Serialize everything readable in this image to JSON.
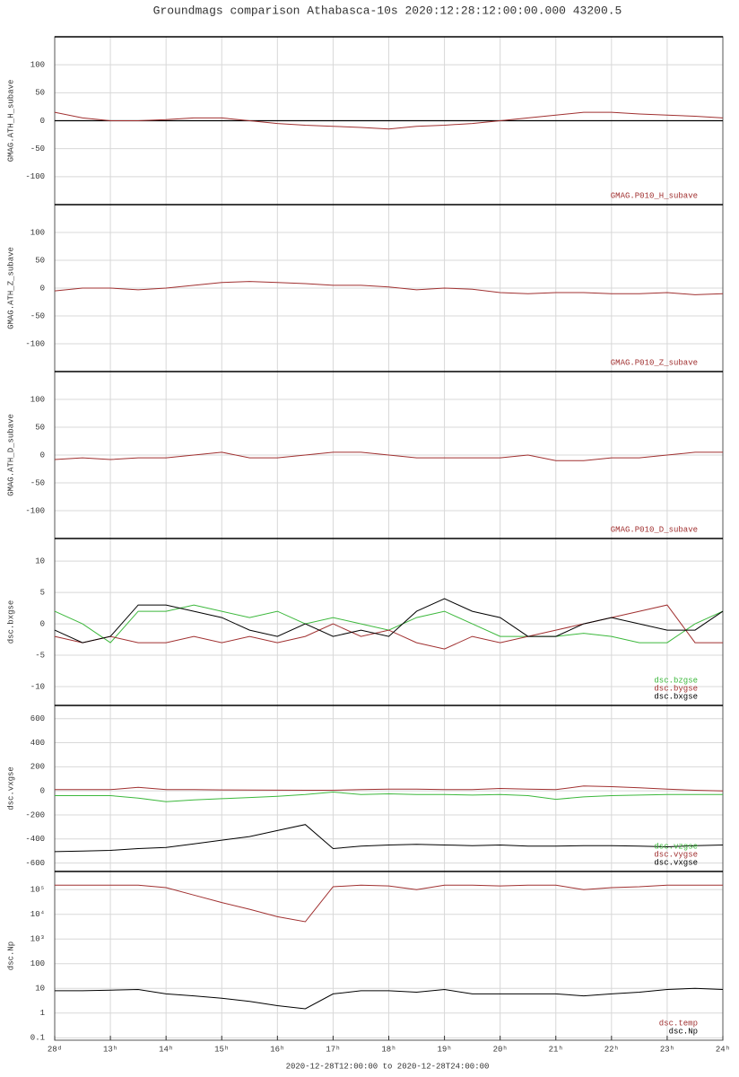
{
  "title": "Groundmags comparison Athabasca-10s 2020:12:28:12:00:00.000 43200.5",
  "footer": "2020-12-28T12:00:00 to 2020-12-28T24:00:00",
  "chart_data": [
    {
      "type": "line",
      "ylabel": "GMAG.ATH_H_subave",
      "ylim": [
        -150,
        150
      ],
      "yticks": [
        -100,
        -50,
        0,
        50,
        100
      ],
      "grid": true,
      "zero_line": true,
      "legend": "lower right",
      "x": [
        12,
        12.5,
        13,
        13.5,
        14,
        14.5,
        15,
        15.5,
        16,
        16.5,
        17,
        17.5,
        18,
        18.5,
        19,
        19.5,
        20,
        20.5,
        21,
        21.5,
        22,
        22.5,
        23,
        23.5,
        24
      ],
      "series": [
        {
          "name": "GMAG.P010_H_subave",
          "color": "#a03030",
          "values": [
            15,
            5,
            0,
            0,
            2,
            5,
            5,
            0,
            -5,
            -8,
            -10,
            -12,
            -15,
            -10,
            -8,
            -5,
            0,
            5,
            10,
            15,
            15,
            12,
            10,
            8,
            5
          ]
        }
      ]
    },
    {
      "type": "line",
      "ylabel": "GMAG.ATH_Z_subave",
      "ylim": [
        -150,
        150
      ],
      "yticks": [
        -100,
        -50,
        0,
        50,
        100
      ],
      "grid": true,
      "legend": "lower right",
      "x": [
        12,
        12.5,
        13,
        13.5,
        14,
        14.5,
        15,
        15.5,
        16,
        16.5,
        17,
        17.5,
        18,
        18.5,
        19,
        19.5,
        20,
        20.5,
        21,
        21.5,
        22,
        22.5,
        23,
        23.5,
        24
      ],
      "series": [
        {
          "name": "GMAG.P010_Z_subave",
          "color": "#a03030",
          "values": [
            -5,
            0,
            0,
            -3,
            0,
            5,
            10,
            12,
            10,
            8,
            5,
            5,
            2,
            -3,
            0,
            -2,
            -8,
            -10,
            -8,
            -8,
            -10,
            -10,
            -8,
            -12,
            -10
          ]
        }
      ]
    },
    {
      "type": "line",
      "ylabel": "GMAG.ATH_D_subave",
      "ylim": [
        -150,
        150
      ],
      "yticks": [
        -100,
        -50,
        0,
        50,
        100
      ],
      "grid": true,
      "legend": "lower right",
      "x": [
        12,
        12.5,
        13,
        13.5,
        14,
        14.5,
        15,
        15.5,
        16,
        16.5,
        17,
        17.5,
        18,
        18.5,
        19,
        19.5,
        20,
        20.5,
        21,
        21.5,
        22,
        22.5,
        23,
        23.5,
        24
      ],
      "series": [
        {
          "name": "GMAG.P010_D_subave",
          "color": "#a03030",
          "values": [
            -8,
            -5,
            -8,
            -5,
            -5,
            0,
            5,
            -5,
            -5,
            0,
            5,
            5,
            0,
            -5,
            -5,
            -5,
            -5,
            0,
            -10,
            -10,
            -5,
            -5,
            0,
            5,
            5
          ]
        }
      ]
    },
    {
      "type": "line",
      "ylabel": "dsc.bxgse",
      "ylim": [
        -13,
        13.6
      ],
      "yticks": [
        -10,
        -5,
        0,
        5,
        10
      ],
      "grid": true,
      "legend": "lower right",
      "x": [
        12,
        12.5,
        13,
        13.5,
        14,
        14.5,
        15,
        15.5,
        16,
        16.5,
        17,
        17.5,
        18,
        18.5,
        19,
        19.5,
        20,
        20.5,
        21,
        21.5,
        22,
        22.5,
        23,
        23.5,
        24
      ],
      "series": [
        {
          "name": "dsc.bzgse",
          "color": "#3cb83c",
          "values": [
            2,
            0,
            -3,
            2,
            2,
            3,
            2,
            1,
            2,
            0,
            1,
            0,
            -1,
            1,
            2,
            0,
            -2,
            -2,
            -2,
            -1.5,
            -2,
            -3,
            -3,
            0,
            2
          ]
        },
        {
          "name": "dsc.bygse",
          "color": "#a03030",
          "values": [
            -2,
            -3,
            -2,
            -3,
            -3,
            -2,
            -3,
            -2,
            -3,
            -2,
            0,
            -2,
            -1,
            -3,
            -4,
            -2,
            -3,
            -2,
            -1,
            0,
            1,
            2,
            3,
            -3,
            -3
          ]
        },
        {
          "name": "dsc.bxgse",
          "color": "#000000",
          "values": [
            -1,
            -3,
            -2,
            3,
            3,
            2,
            1,
            -1,
            -2,
            0,
            -2,
            -1,
            -2,
            2,
            4,
            2,
            1,
            -2,
            -2,
            0,
            1,
            0,
            -1,
            -1,
            2
          ]
        }
      ]
    },
    {
      "type": "line",
      "ylabel": "dsc.vxgse",
      "ylim": [
        -670,
        710
      ],
      "yticks": [
        -600,
        -400,
        -200,
        0,
        200,
        400,
        600
      ],
      "grid": true,
      "legend": "lower right",
      "x": [
        12,
        12.5,
        13,
        13.5,
        14,
        14.5,
        15,
        15.5,
        16,
        16.5,
        17,
        17.5,
        18,
        18.5,
        19,
        19.5,
        20,
        20.5,
        21,
        21.5,
        22,
        22.5,
        23,
        23.5,
        24
      ],
      "series": [
        {
          "name": "dsc.vzgse",
          "color": "#3cb83c",
          "values": [
            -40,
            -40,
            -40,
            -60,
            -90,
            -75,
            -65,
            -55,
            -45,
            -30,
            -10,
            -30,
            -25,
            -30,
            -30,
            -35,
            -30,
            -40,
            -70,
            -50,
            -40,
            -35,
            -30,
            -30,
            -30
          ]
        },
        {
          "name": "dsc.vygse",
          "color": "#a03030",
          "values": [
            10,
            10,
            10,
            30,
            10,
            10,
            8,
            7,
            6,
            5,
            5,
            10,
            15,
            15,
            10,
            10,
            20,
            15,
            10,
            40,
            35,
            25,
            15,
            5,
            0
          ]
        },
        {
          "name": "dsc.vxgse",
          "color": "#000000",
          "values": [
            -505,
            -500,
            -495,
            -480,
            -470,
            -440,
            -410,
            -380,
            -330,
            -280,
            -480,
            -460,
            -450,
            -445,
            -450,
            -455,
            -450,
            -460,
            -460,
            -455,
            -455,
            -460,
            -465,
            -455,
            -450
          ]
        }
      ]
    },
    {
      "type": "line",
      "ylabel": "dsc.Np",
      "log_y": true,
      "ylim": [
        0.08,
        540000
      ],
      "yticks": [
        0.1,
        1,
        10,
        100,
        {
          "value": 1000,
          "label": "10³"
        },
        {
          "value": 10000,
          "label": "10⁴"
        },
        {
          "value": 100000,
          "label": "10⁵"
        }
      ],
      "grid": true,
      "legend": "lower right",
      "xticks": [
        {
          "value": 12,
          "label": "28ᵈ"
        },
        {
          "value": 13,
          "label": "13ʰ"
        },
        {
          "value": 14,
          "label": "14ʰ"
        },
        {
          "value": 15,
          "label": "15ʰ"
        },
        {
          "value": 16,
          "label": "16ʰ"
        },
        {
          "value": 17,
          "label": "17ʰ"
        },
        {
          "value": 18,
          "label": "18ʰ"
        },
        {
          "value": 19,
          "label": "19ʰ"
        },
        {
          "value": 20,
          "label": "20ʰ"
        },
        {
          "value": 21,
          "label": "21ʰ"
        },
        {
          "value": 22,
          "label": "22ʰ"
        },
        {
          "value": 23,
          "label": "23ʰ"
        },
        {
          "value": 24,
          "label": "24ʰ"
        }
      ],
      "xlim": [
        12,
        24
      ],
      "x": [
        12,
        12.5,
        13,
        13.5,
        14,
        14.5,
        15,
        15.5,
        16,
        16.5,
        17,
        17.5,
        18,
        18.5,
        19,
        19.5,
        20,
        20.5,
        21,
        21.5,
        22,
        22.5,
        23,
        23.5,
        24
      ],
      "series": [
        {
          "name": "dsc.temp",
          "color": "#a03030",
          "values": [
            150000,
            150000,
            150000,
            150000,
            120000,
            60000,
            30000,
            16000,
            8000,
            5000,
            130000,
            150000,
            140000,
            100000,
            150000,
            150000,
            140000,
            150000,
            150000,
            100000,
            120000,
            130000,
            150000,
            150000,
            150000
          ]
        },
        {
          "name": "dsc.Np",
          "color": "#000000",
          "values": [
            8,
            8,
            8.5,
            9,
            6,
            5,
            4,
            3,
            2,
            1.5,
            6,
            8,
            8,
            7,
            9,
            6,
            6,
            6,
            6,
            5,
            6,
            7,
            9,
            10,
            9
          ]
        }
      ]
    }
  ]
}
